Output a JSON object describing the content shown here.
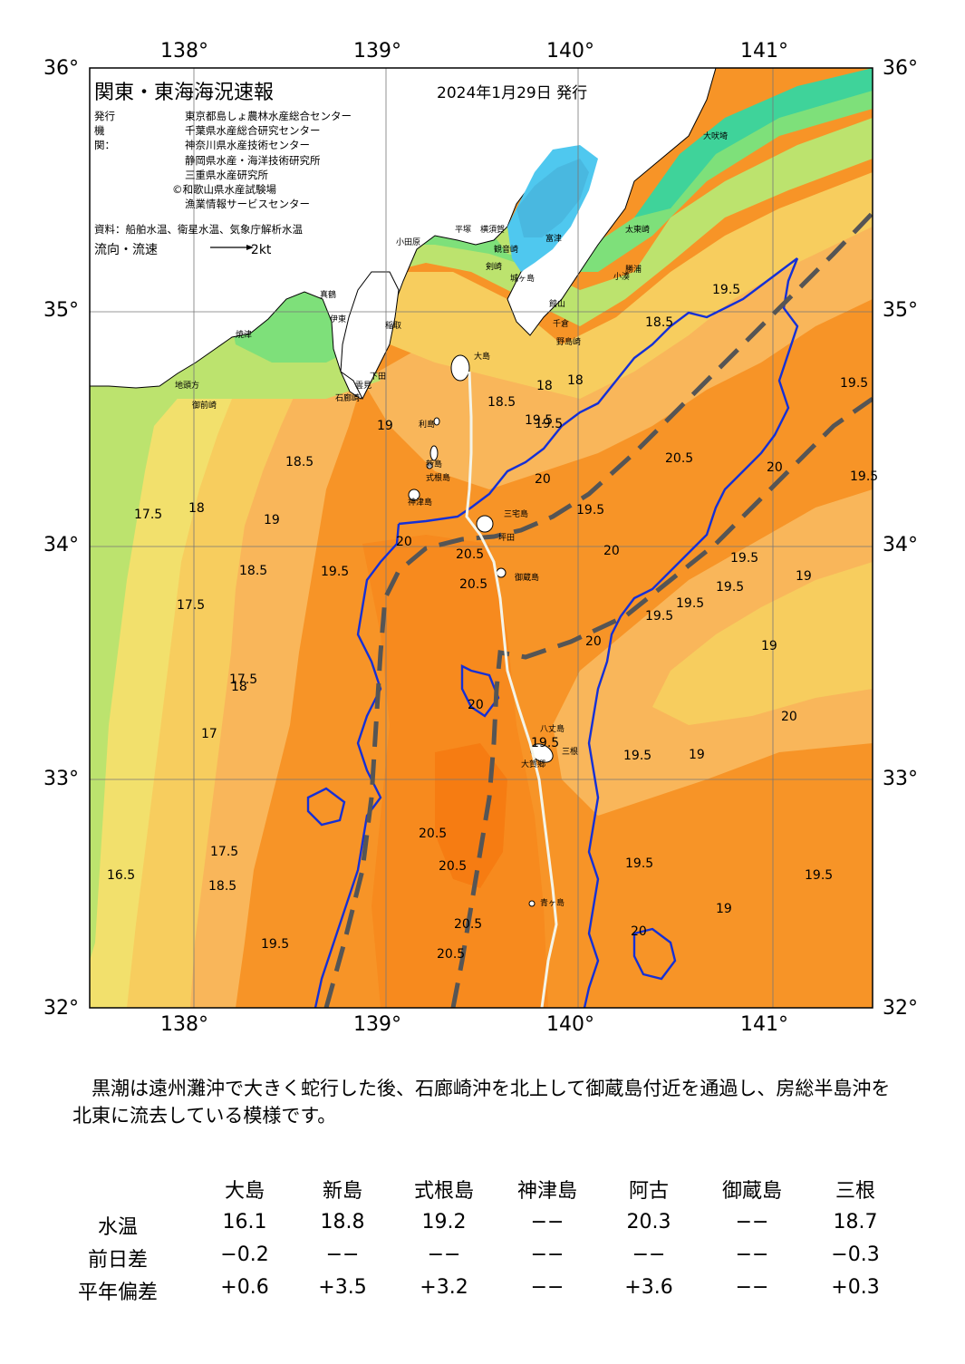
{
  "map": {
    "title": "関東・東海海況速報",
    "issue_date": "2024年1月29日 発行",
    "publisher_label": "発行機関：",
    "publishers": [
      "東京都島しょ農林水産総合センター",
      "千葉県水産総合研究センター",
      "神奈川県水産技術センター",
      "静岡県水産・海洋技術研究所",
      "三重県水産研究所",
      "©和歌山県水産試験場",
      "漁業情報サービスセンター"
    ],
    "sources": "資料：船舶水温、衛星水温、気象庁解析水温",
    "flow_legend_label": "流向・流速",
    "flow_legend_scale": "2kt",
    "lon_labels": [
      "138°",
      "139°",
      "140°",
      "141°"
    ],
    "lat_labels": [
      "36°",
      "35°",
      "34°",
      "33°",
      "32°"
    ],
    "colors": {
      "land": "#ffffff",
      "lake": "#4fc8ef",
      "water_15": "#3fd39a",
      "water_16": "#7ee07a",
      "water_17": "#bce36e",
      "water_18": "#f2e06c",
      "water_185": "#f7cd5e",
      "water_19": "#f9b65a",
      "water_195": "#f7a24a",
      "water_20": "#f79427",
      "water_205": "#f78a1e",
      "water_21": "#f67c12",
      "isotherm_20": "#1530d6",
      "kuroshio_axis": "#555555",
      "ship_track": "#f4f4e8"
    },
    "place_names": [
      {
        "name": "大吠埼"
      },
      {
        "name": "太東崎"
      },
      {
        "name": "小湊"
      },
      {
        "name": "勝浦"
      },
      {
        "name": "館山"
      },
      {
        "name": "千倉"
      },
      {
        "name": "野島崎"
      },
      {
        "name": "富津"
      },
      {
        "name": "観音崎"
      },
      {
        "name": "剣崎"
      },
      {
        "name": "城ヶ島"
      },
      {
        "name": "平塚"
      },
      {
        "name": "横須賀"
      },
      {
        "name": "小田原"
      },
      {
        "name": "真鶴"
      },
      {
        "name": "伊東"
      },
      {
        "name": "稲取"
      },
      {
        "name": "下田"
      },
      {
        "name": "石廊崎"
      },
      {
        "name": "雲見"
      },
      {
        "name": "焼津"
      },
      {
        "name": "御前崎"
      },
      {
        "name": "地頭方"
      },
      {
        "name": "大島"
      },
      {
        "name": "利島"
      },
      {
        "name": "新島"
      },
      {
        "name": "式根島"
      },
      {
        "name": "神津島"
      },
      {
        "name": "三宅島"
      },
      {
        "name": "坪田"
      },
      {
        "name": "御蔵島"
      },
      {
        "name": "八丈島"
      },
      {
        "name": "三根"
      },
      {
        "name": "大賀郷"
      },
      {
        "name": "青ヶ島"
      }
    ],
    "temperature_labels": [
      {
        "text": "18.5"
      },
      {
        "text": "19.5"
      },
      {
        "text": "19"
      },
      {
        "text": "18.5"
      },
      {
        "text": "18"
      },
      {
        "text": "17.5"
      },
      {
        "text": "18"
      },
      {
        "text": "19"
      },
      {
        "text": "20"
      },
      {
        "text": "20.5"
      },
      {
        "text": "20.5"
      },
      {
        "text": "19.5"
      },
      {
        "text": "18.5"
      },
      {
        "text": "17.5"
      },
      {
        "text": "17"
      },
      {
        "text": "17.5"
      },
      {
        "text": "18.5"
      },
      {
        "text": "19.5"
      },
      {
        "text": "20"
      },
      {
        "text": "20"
      },
      {
        "text": "19.5"
      },
      {
        "text": "20.5"
      },
      {
        "text": "20.5"
      },
      {
        "text": "20.5"
      },
      {
        "text": "20.5"
      },
      {
        "text": "19.5"
      },
      {
        "text": "17.5"
      },
      {
        "text": "16.5"
      },
      {
        "text": "18.5"
      },
      {
        "text": "19.5"
      },
      {
        "text": "19.5"
      },
      {
        "text": "19.5"
      },
      {
        "text": "19"
      },
      {
        "text": "19.5"
      },
      {
        "text": "19.5"
      },
      {
        "text": "19.5"
      },
      {
        "text": "19.5"
      },
      {
        "text": "19"
      },
      {
        "text": "19"
      },
      {
        "text": "20"
      },
      {
        "text": "20.5"
      },
      {
        "text": "20"
      },
      {
        "text": "19.5"
      },
      {
        "text": "19"
      },
      {
        "text": "20"
      },
      {
        "text": "18"
      },
      {
        "text": "19.5"
      },
      {
        "text": "20"
      },
      {
        "text": "19.5"
      },
      {
        "text": "19.5"
      },
      {
        "text": "20"
      },
      {
        "text": "18"
      }
    ]
  },
  "commentary": "黒潮は遠州灘沖で大きく蛇行した後、石廊崎沖を北上して御蔵島付近を通過し、房総半島沖を北東に流去している模様です。",
  "observations": {
    "stations": [
      "大島",
      "新島",
      "式根島",
      "神津島",
      "阿古",
      "御蔵島",
      "三根"
    ],
    "rows": [
      {
        "label": "水温",
        "values": [
          "16.1",
          "18.8",
          "19.2",
          "−−",
          "20.3",
          "−−",
          "18.7"
        ]
      },
      {
        "label": "前日差",
        "values": [
          "−0.2",
          "−−",
          "−−",
          "−−",
          "−−",
          "−−",
          "−0.3"
        ]
      },
      {
        "label": "平年偏差",
        "values": [
          "+0.6",
          "+3.5",
          "+3.2",
          "−−",
          "+3.6",
          "−−",
          "+0.3"
        ]
      }
    ]
  }
}
